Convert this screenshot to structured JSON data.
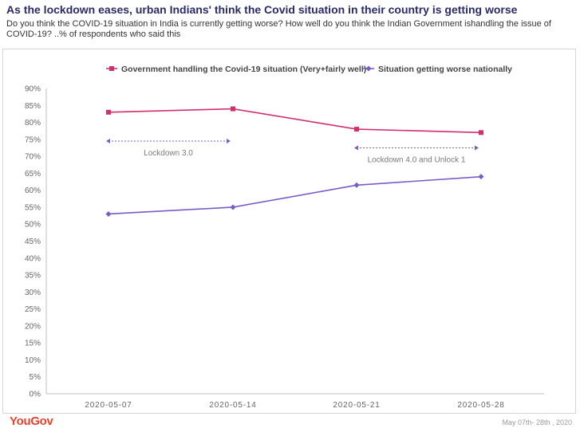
{
  "header": {
    "title": "As the lockdown eases, urban Indians' think the Covid situation in their country is getting worse",
    "subtitle": "Do you think the COVID-19 situation in India is currently getting worse? How well do you think the Indian Government ishandling the issue of COVID-19? ..% of respondents who said this"
  },
  "footer": {
    "logo": "YouGov",
    "date_range": "May 07th- 28th , 2020"
  },
  "chart_data": {
    "type": "line",
    "x": [
      "2020-05-07",
      "2020-05-14",
      "2020-05-21",
      "2020-05-28"
    ],
    "y_ticks": [
      "0%",
      "5%",
      "10%",
      "15%",
      "20%",
      "25%",
      "30%",
      "35%",
      "40%",
      "45%",
      "50%",
      "55%",
      "60%",
      "65%",
      "70%",
      "75%",
      "80%",
      "85%",
      "90%"
    ],
    "ylim": [
      0,
      90
    ],
    "grid": false,
    "legend_position": "top",
    "series": [
      {
        "name": "Government handling the Covid-19 situation (Very+fairly well)",
        "color": "#d12f6e",
        "marker": "square",
        "values": [
          83,
          84,
          78,
          77
        ]
      },
      {
        "name": "Situation getting worse nationally",
        "color": "#7a5cc8",
        "marker": "diamond",
        "values": [
          53,
          55,
          61.5,
          64
        ]
      }
    ],
    "annotations": [
      {
        "label": "Lockdown 3.0",
        "from": "2020-05-07",
        "to": "2020-05-14",
        "y": 74.5
      },
      {
        "label": "Lockdown 4.0 and Unlock 1",
        "from": "2020-05-21",
        "to": "2020-05-28",
        "y": 72.5
      }
    ]
  }
}
